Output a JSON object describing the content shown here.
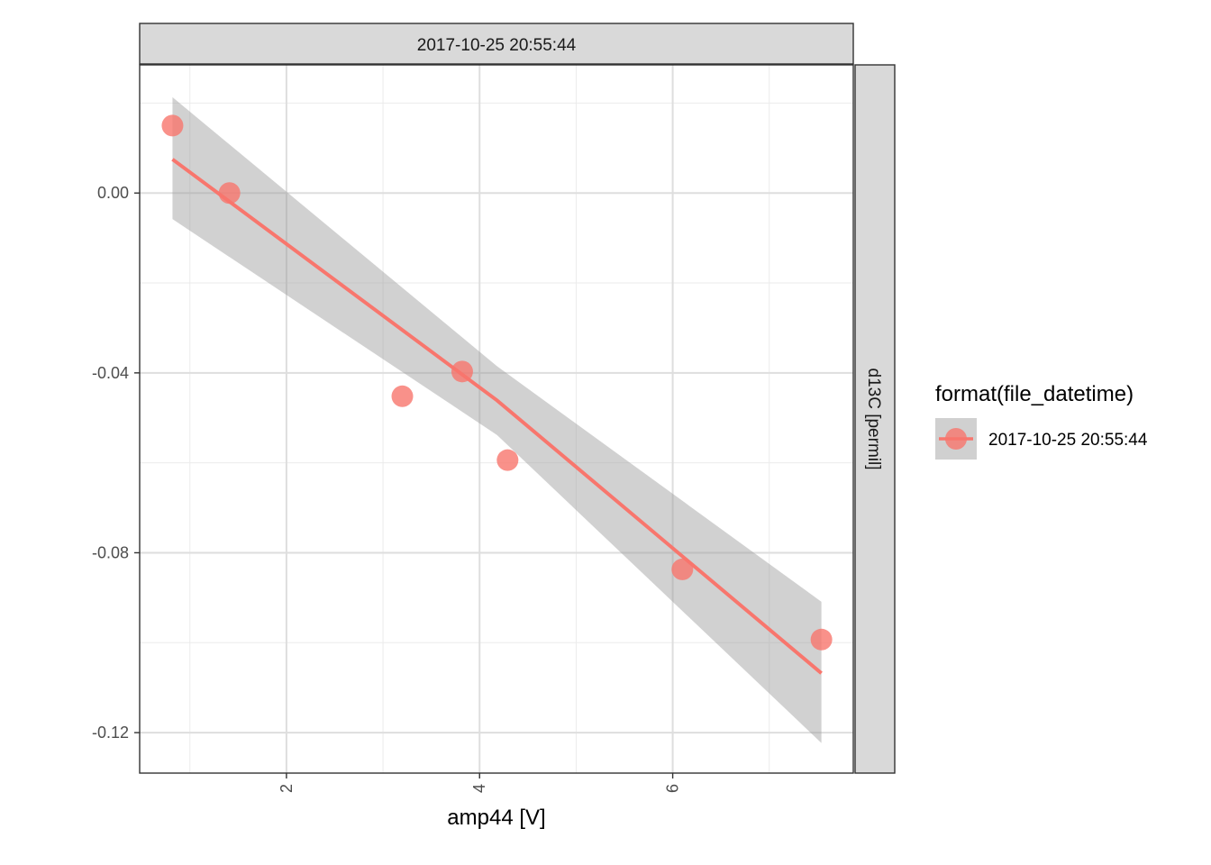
{
  "chart_data": {
    "type": "scatter",
    "facet_top": "2017-10-25 20:55:44",
    "facet_right": "d13C [permil]",
    "xlabel": "amp44 [V]",
    "ylabel": "",
    "xlim": [
      0.48,
      7.87
    ],
    "ylim": [
      -0.129,
      0.0285
    ],
    "x_ticks": [
      2,
      4,
      6
    ],
    "x_tick_labels": [
      "2",
      "4",
      "6"
    ],
    "x_minor": [
      1,
      3,
      5,
      7
    ],
    "y_ticks": [
      0.0,
      -0.04,
      -0.08,
      -0.12
    ],
    "y_tick_labels": [
      "0.00",
      "-0.04",
      "-0.08",
      "-0.12"
    ],
    "y_minor": [
      0.02,
      -0.02,
      -0.06,
      -0.1
    ],
    "grid": true,
    "legend": {
      "title": "format(file_datetime)",
      "position": "right",
      "entries": [
        "2017-10-25 20:55:44"
      ]
    },
    "series": [
      {
        "name": "2017-10-25 20:55:44",
        "color": "#F8766D",
        "points": [
          {
            "x": 0.82,
            "y": 0.015
          },
          {
            "x": 1.41,
            "y": 0.0
          },
          {
            "x": 3.2,
            "y": -0.0452
          },
          {
            "x": 3.82,
            "y": -0.0397
          },
          {
            "x": 4.29,
            "y": -0.0594
          },
          {
            "x": 6.1,
            "y": -0.0837
          },
          {
            "x": 7.54,
            "y": -0.0993
          }
        ],
        "fit": {
          "method": "lm",
          "x": [
            0.82,
            4.18,
            7.54
          ],
          "y": [
            0.0075,
            -0.0461,
            -0.1068
          ],
          "se_upper": [
            0.0213,
            -0.0385,
            -0.0909
          ],
          "se_lower": [
            -0.0058,
            -0.0538,
            -0.1223
          ],
          "band_color": "#999999"
        }
      }
    ]
  }
}
